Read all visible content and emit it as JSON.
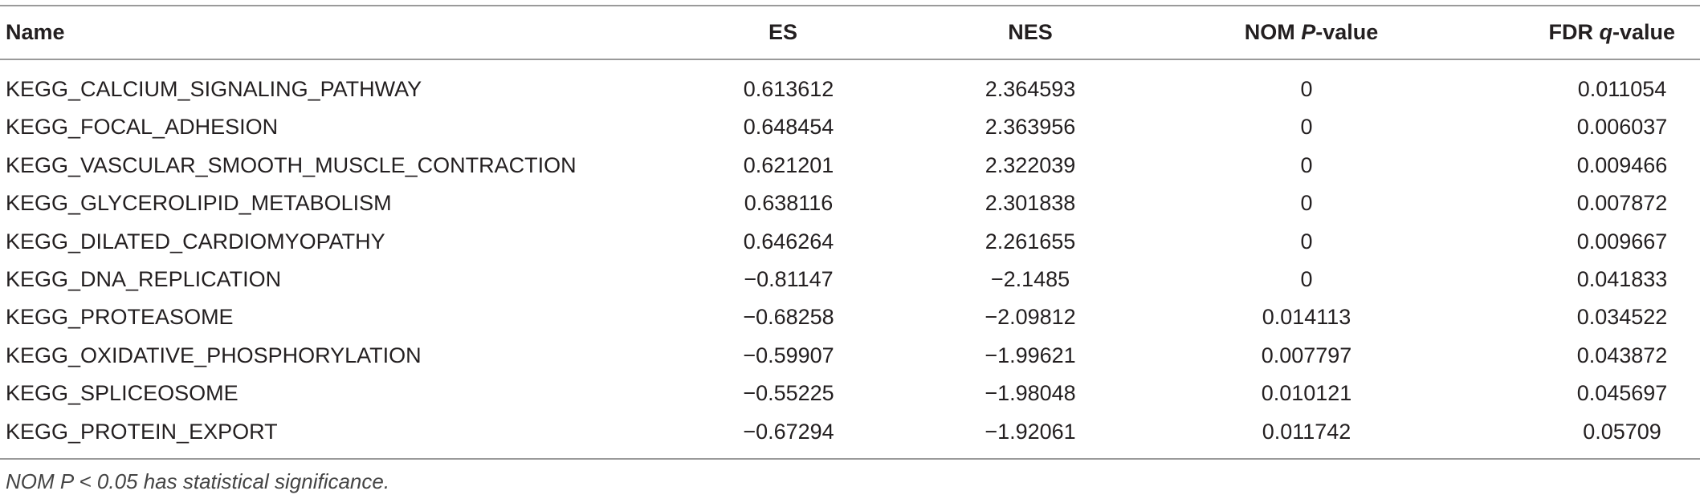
{
  "table": {
    "header": [
      [
        {
          "text": "Name"
        }
      ],
      [
        {
          "text": "ES"
        }
      ],
      [
        {
          "text": "NES"
        }
      ],
      [
        {
          "text": "NOM "
        },
        {
          "text": "P",
          "italic": true
        },
        {
          "text": "-value"
        }
      ],
      [
        {
          "text": "FDR "
        },
        {
          "text": "q",
          "italic": true
        },
        {
          "text": "-value"
        }
      ]
    ],
    "rows": [
      [
        "KEGG_CALCIUM_SIGNALING_PATHWAY",
        "0.613612",
        "2.364593",
        "0",
        "0.011054"
      ],
      [
        "KEGG_FOCAL_ADHESION",
        "0.648454",
        "2.363956",
        "0",
        "0.006037"
      ],
      [
        "KEGG_VASCULAR_SMOOTH_MUSCLE_CONTRACTION",
        "0.621201",
        "2.322039",
        "0",
        "0.009466"
      ],
      [
        "KEGG_GLYCEROLIPID_METABOLISM",
        "0.638116",
        "2.301838",
        "0",
        "0.007872"
      ],
      [
        "KEGG_DILATED_CARDIOMYOPATHY",
        "0.646264",
        "2.261655",
        "0",
        "0.009667"
      ],
      [
        "KEGG_DNA_REPLICATION",
        "−0.81147",
        "−2.1485",
        "0",
        "0.041833"
      ],
      [
        "KEGG_PROTEASOME",
        "−0.68258",
        "−2.09812",
        "0.014113",
        "0.034522"
      ],
      [
        "KEGG_OXIDATIVE_PHOSPHORYLATION",
        "−0.59907",
        "−1.99621",
        "0.007797",
        "0.043872"
      ],
      [
        "KEGG_SPLICEOSOME",
        "−0.55225",
        "−1.98048",
        "0.010121",
        "0.045697"
      ],
      [
        "KEGG_PROTEIN_EXPORT",
        "−0.67294",
        "−1.92061",
        "0.011742",
        "0.05709"
      ]
    ],
    "footnote": "NOM P < 0.05 has statistical significance."
  }
}
